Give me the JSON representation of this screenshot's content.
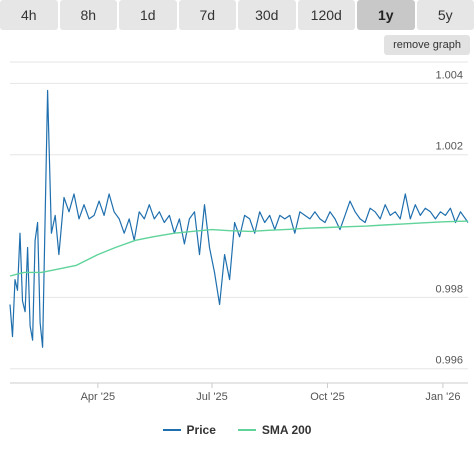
{
  "range_buttons": [
    {
      "label": "4h",
      "active": false
    },
    {
      "label": "8h",
      "active": false
    },
    {
      "label": "1d",
      "active": false
    },
    {
      "label": "7d",
      "active": false
    },
    {
      "label": "30d",
      "active": false
    },
    {
      "label": "120d",
      "active": false
    },
    {
      "label": "1y",
      "active": true
    },
    {
      "label": "5y",
      "active": false
    }
  ],
  "remove_graph_label": "remove graph",
  "colors": {
    "price": "#1f6fae",
    "sma": "#5fd39a",
    "grid": "#e6e6e6",
    "axis_text": "#555555"
  },
  "legend": [
    {
      "label": "Price",
      "color": "#1f6fae"
    },
    {
      "label": "SMA 200",
      "color": "#5fd39a"
    }
  ],
  "chart_data": {
    "type": "line",
    "title": "",
    "xlabel": "",
    "ylabel": "",
    "x_range": [
      "2025-01-21",
      "2026-01-21"
    ],
    "ylim": [
      0.9956,
      1.0046
    ],
    "y_ticks": [
      "0.996",
      "0.998",
      "1.002",
      "1.004"
    ],
    "y_tick_values": [
      0.996,
      0.998,
      1.002,
      1.004
    ],
    "x_ticks": [
      "Apr '25",
      "Jul '25",
      "Oct '25",
      "Jan '26"
    ],
    "x_tick_values": [
      "2025-04-01",
      "2025-07-01",
      "2025-10-01",
      "2026-01-01"
    ],
    "grid": true,
    "legend_position": "bottom-center",
    "series": [
      {
        "name": "Price",
        "x": [
          "2025-01-21",
          "2025-01-23",
          "2025-01-25",
          "2025-01-27",
          "2025-01-29",
          "2025-01-31",
          "2025-02-02",
          "2025-02-04",
          "2025-02-06",
          "2025-02-08",
          "2025-02-10",
          "2025-02-12",
          "2025-02-14",
          "2025-02-16",
          "2025-02-18",
          "2025-02-20",
          "2025-02-23",
          "2025-02-26",
          "2025-03-01",
          "2025-03-05",
          "2025-03-09",
          "2025-03-13",
          "2025-03-17",
          "2025-03-21",
          "2025-03-25",
          "2025-03-29",
          "2025-04-02",
          "2025-04-06",
          "2025-04-10",
          "2025-04-14",
          "2025-04-18",
          "2025-04-22",
          "2025-04-26",
          "2025-04-30",
          "2025-05-04",
          "2025-05-08",
          "2025-05-12",
          "2025-05-16",
          "2025-05-20",
          "2025-05-24",
          "2025-05-28",
          "2025-06-01",
          "2025-06-05",
          "2025-06-09",
          "2025-06-13",
          "2025-06-17",
          "2025-06-21",
          "2025-06-25",
          "2025-06-29",
          "2025-07-03",
          "2025-07-07",
          "2025-07-11",
          "2025-07-15",
          "2025-07-19",
          "2025-07-23",
          "2025-07-27",
          "2025-07-31",
          "2025-08-04",
          "2025-08-08",
          "2025-08-12",
          "2025-08-16",
          "2025-08-20",
          "2025-08-24",
          "2025-08-28",
          "2025-09-01",
          "2025-09-05",
          "2025-09-09",
          "2025-09-13",
          "2025-09-17",
          "2025-09-21",
          "2025-09-25",
          "2025-09-29",
          "2025-10-03",
          "2025-10-07",
          "2025-10-11",
          "2025-10-15",
          "2025-10-19",
          "2025-10-23",
          "2025-10-27",
          "2025-10-31",
          "2025-11-04",
          "2025-11-08",
          "2025-11-12",
          "2025-11-16",
          "2025-11-20",
          "2025-11-24",
          "2025-11-28",
          "2025-12-02",
          "2025-12-06",
          "2025-12-10",
          "2025-12-14",
          "2025-12-18",
          "2025-12-22",
          "2025-12-26",
          "2025-12-30",
          "2026-01-03",
          "2026-01-07",
          "2026-01-11",
          "2026-01-15",
          "2026-01-19",
          "2026-01-21"
        ],
        "y": [
          0.9978,
          0.9969,
          0.9985,
          0.9982,
          0.9998,
          0.9979,
          0.9976,
          0.9994,
          0.9972,
          0.9968,
          0.9996,
          1.0001,
          0.9973,
          0.9966,
          1.0002,
          1.0038,
          0.9998,
          1.0003,
          0.9992,
          1.0008,
          1.0004,
          1.0009,
          1.0002,
          1.0006,
          1.0002,
          1.0003,
          1.0007,
          1.0003,
          1.0009,
          1.0004,
          1.0002,
          0.9998,
          1.0002,
          0.9996,
          1.0004,
          1.0002,
          1.0006,
          1.0002,
          1.0004,
          1.0001,
          1.0003,
          0.9998,
          1.0002,
          0.9995,
          1.0002,
          1.0004,
          0.9992,
          1.0006,
          0.9994,
          0.9987,
          0.9978,
          0.9992,
          0.9985,
          1.0001,
          0.9997,
          1.0003,
          1.0002,
          0.9998,
          1.0004,
          1.0001,
          1.0003,
          0.9999,
          1.0003,
          1.0002,
          1.0003,
          0.9998,
          1.0004,
          1.0003,
          1.0002,
          1.0004,
          1.0002,
          1.0001,
          1.0004,
          1.0002,
          0.9999,
          1.0003,
          1.0007,
          1.0004,
          1.0002,
          1.0001,
          1.0005,
          1.0004,
          1.0002,
          1.0006,
          1.0003,
          1.0004,
          1.0002,
          1.0009,
          1.0002,
          1.0006,
          1.0003,
          1.0005,
          1.0004,
          1.0002,
          1.0004,
          1.0003,
          1.0005,
          1.0001,
          1.0004,
          1.0002,
          1.0001
        ]
      },
      {
        "name": "SMA 200",
        "x": [
          "2025-01-21",
          "2025-02-01",
          "2025-02-15",
          "2025-03-01",
          "2025-03-15",
          "2025-04-01",
          "2025-04-15",
          "2025-05-01",
          "2025-05-15",
          "2025-06-01",
          "2025-06-15",
          "2025-07-01",
          "2025-07-15",
          "2025-08-01",
          "2025-08-15",
          "2025-09-01",
          "2025-09-15",
          "2025-10-01",
          "2025-10-15",
          "2025-11-01",
          "2025-11-15",
          "2025-12-01",
          "2025-12-15",
          "2026-01-01",
          "2026-01-21"
        ],
        "y": [
          0.9986,
          0.9987,
          0.9987,
          0.9988,
          0.9989,
          0.9992,
          0.9994,
          0.9996,
          0.9997,
          0.9998,
          0.99985,
          0.9999,
          0.99987,
          0.99985,
          0.99988,
          0.99991,
          0.99994,
          0.99996,
          0.99998,
          1.0,
          1.00003,
          1.00006,
          1.00009,
          1.00012,
          1.00014
        ]
      }
    ]
  }
}
